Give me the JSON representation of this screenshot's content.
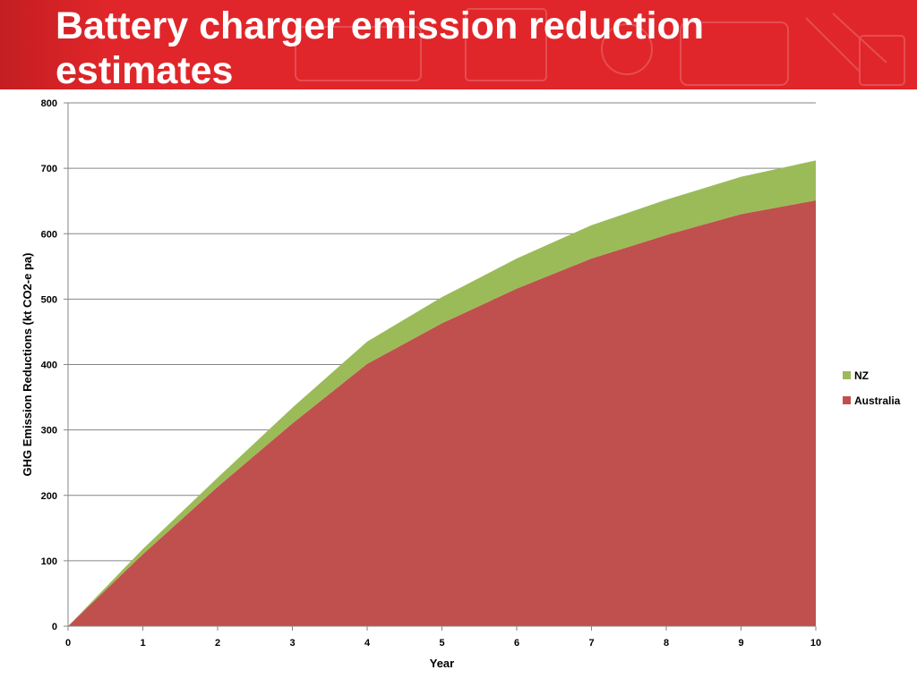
{
  "slide": {
    "title": "Battery charger emission reduction estimates",
    "banner_color": "#e0262a"
  },
  "chart_data": {
    "type": "area",
    "stacked": true,
    "title": "",
    "xlabel": "Year",
    "ylabel": "GHG Emission Reductions (kt CO2-e pa)",
    "x": [
      0,
      1,
      2,
      3,
      4,
      5,
      6,
      7,
      8,
      9,
      10
    ],
    "xlim": [
      0,
      10
    ],
    "ylim": [
      0,
      800
    ],
    "yticks": [
      0,
      100,
      200,
      300,
      400,
      500,
      600,
      700,
      800
    ],
    "grid": true,
    "legend_position": "right",
    "series": [
      {
        "name": "Australia",
        "color": "#c0504d",
        "values": [
          0,
          110,
          213,
          310,
          401,
          463,
          516,
          562,
          598,
          630,
          651
        ]
      },
      {
        "name": "NZ",
        "color": "#9bbb59",
        "values": [
          0,
          8,
          14,
          24,
          34,
          40,
          46,
          51,
          54,
          57,
          61
        ]
      }
    ]
  }
}
